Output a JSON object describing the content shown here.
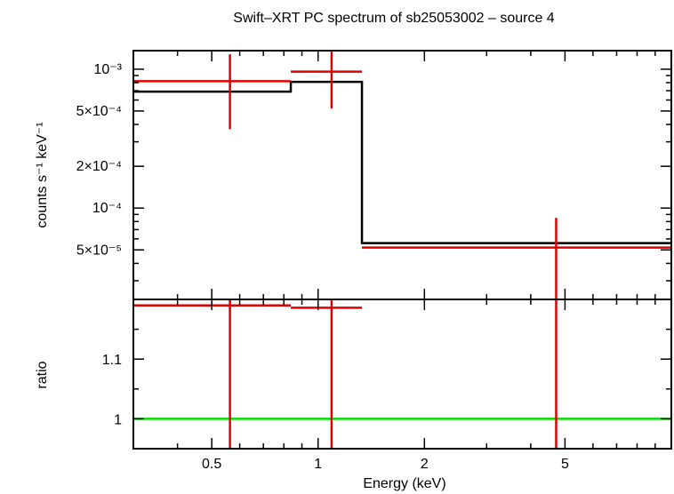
{
  "chart_data": {
    "title": "Swift–XRT PC spectrum of sb25053002 – source 4",
    "type": "line",
    "xscale": "log",
    "xlabel": "Energy (keV)",
    "xlim": [
      0.3,
      10
    ],
    "xticks": [
      {
        "value": 0.5,
        "label": "0.5"
      },
      {
        "value": 1,
        "label": "1"
      },
      {
        "value": 2,
        "label": "2"
      },
      {
        "value": 5,
        "label": "5"
      }
    ],
    "top_panel": {
      "ylabel": "counts s⁻¹ keV⁻¹",
      "yscale": "log",
      "ylim": [
        2.2e-05,
        0.00136
      ],
      "yticks": [
        {
          "value": 0.001,
          "label": "10⁻³"
        },
        {
          "value": 0.0005,
          "label": "5×10⁻⁴"
        },
        {
          "value": 0.0002,
          "label": "2×10⁻⁴"
        },
        {
          "value": 0.0001,
          "label": "10⁻⁴"
        },
        {
          "value": 5e-05,
          "label": "5×10⁻⁵"
        }
      ],
      "model": {
        "color": "#000000",
        "steps": [
          {
            "x_lo": 0.3,
            "x_hi": 0.837,
            "y": 0.00069
          },
          {
            "x_lo": 0.837,
            "x_hi": 1.331,
            "y": 0.00081
          },
          {
            "x_lo": 1.331,
            "x_hi": 10,
            "y": 5.6e-05
          }
        ]
      },
      "data": {
        "color": "#e00000",
        "points": [
          {
            "x": 0.563,
            "x_lo": 0.3,
            "x_hi": 0.837,
            "y": 0.00082,
            "y_lo": 0.00037,
            "y_hi": 0.00128
          },
          {
            "x": 1.092,
            "x_lo": 0.837,
            "x_hi": 1.331,
            "y": 0.00096,
            "y_lo": 0.00052,
            "y_hi": 0.0014
          },
          {
            "x": 4.72,
            "x_lo": 1.331,
            "x_hi": 10,
            "y": 5.2e-05,
            "y_lo": 1e-05,
            "y_hi": 8.5e-05
          }
        ]
      }
    },
    "bottom_panel": {
      "ylabel": "ratio",
      "ylim": [
        0.95,
        1.2
      ],
      "yticks": [
        {
          "value": 1,
          "label": "1"
        },
        {
          "value": 1.1,
          "label": "1.1"
        }
      ],
      "reference": {
        "y": 1,
        "color": "#00dd00"
      },
      "data": {
        "color": "#e00000",
        "points": [
          {
            "x": 0.563,
            "x_lo": 0.3,
            "x_hi": 0.837,
            "y": 1.19,
            "y_lo": 0.9,
            "y_hi": 1.3
          },
          {
            "x": 1.092,
            "x_lo": 0.837,
            "x_hi": 1.331,
            "y": 1.186,
            "y_lo": 0.9,
            "y_hi": 1.3
          },
          {
            "x": 4.72,
            "x_lo": 1.331,
            "x_hi": 10,
            "y": 0.935,
            "y_lo": 0.9,
            "y_hi": 1.3
          }
        ]
      }
    }
  }
}
